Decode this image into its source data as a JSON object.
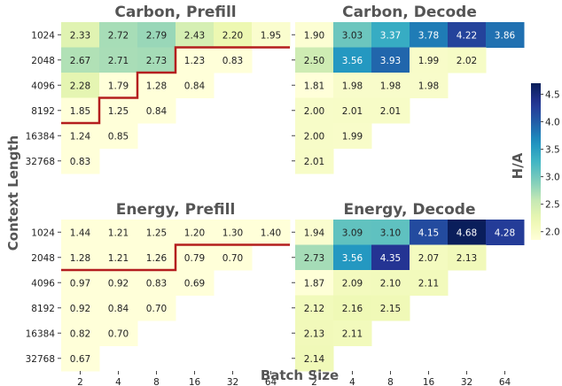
{
  "labels": {
    "ylabel": "Context Length",
    "xlabel": "Batch Size",
    "colorbar_label": "H/A"
  },
  "colors": {
    "colormap": "YlGnBu",
    "boundary_line": "#b41e1e",
    "text_dark": "#222222",
    "text_light": "#ffffff"
  },
  "colorbar": {
    "ticks": [
      "2.0",
      "2.5",
      "3.0",
      "3.5",
      "4.0",
      "4.5"
    ],
    "range": [
      1.85,
      4.7
    ]
  },
  "chart_data": [
    {
      "type": "heatmap",
      "title": "Carbon, Prefill",
      "x": [
        "2",
        "4",
        "8",
        "16",
        "32",
        "64"
      ],
      "y": [
        "1024",
        "2048",
        "4096",
        "8192",
        "16384",
        "32768"
      ],
      "values": [
        [
          "2.33",
          "2.72",
          "2.79",
          "2.43",
          "2.20",
          "1.95"
        ],
        [
          "2.67",
          "2.71",
          "2.73",
          "1.23",
          "0.83",
          null
        ],
        [
          "2.28",
          "1.79",
          "1.28",
          "0.84",
          null,
          null
        ],
        [
          "1.85",
          "1.25",
          "0.84",
          null,
          null,
          null
        ],
        [
          "1.24",
          "0.85",
          null,
          null,
          null,
          null
        ],
        [
          "0.83",
          null,
          null,
          null,
          null,
          null
        ]
      ],
      "boundary_cols_per_row": [
        6,
        3,
        2,
        1,
        0,
        0
      ]
    },
    {
      "type": "heatmap",
      "title": "Carbon, Decode",
      "x": [
        "2",
        "4",
        "8",
        "16",
        "32",
        "64"
      ],
      "y": [
        "1024",
        "2048",
        "4096",
        "8192",
        "16384",
        "32768"
      ],
      "values": [
        [
          "1.90",
          "3.03",
          "3.37",
          "3.78",
          "4.22",
          "3.86"
        ],
        [
          "2.50",
          "3.56",
          "3.93",
          "1.99",
          "2.02",
          null
        ],
        [
          "1.81",
          "1.98",
          "1.98",
          "1.98",
          null,
          null
        ],
        [
          "2.00",
          "2.01",
          "2.01",
          null,
          null,
          null
        ],
        [
          "2.00",
          "1.99",
          null,
          null,
          null,
          null
        ],
        [
          "2.01",
          null,
          null,
          null,
          null,
          null
        ]
      ]
    },
    {
      "type": "heatmap",
      "title": "Energy, Prefill",
      "x": [
        "2",
        "4",
        "8",
        "16",
        "32",
        "64"
      ],
      "y": [
        "1024",
        "2048",
        "4096",
        "8192",
        "16384",
        "32768"
      ],
      "values": [
        [
          "1.44",
          "1.21",
          "1.25",
          "1.20",
          "1.30",
          "1.40"
        ],
        [
          "1.28",
          "1.21",
          "1.26",
          "0.79",
          "0.70",
          null
        ],
        [
          "0.97",
          "0.92",
          "0.83",
          "0.69",
          null,
          null
        ],
        [
          "0.92",
          "0.84",
          "0.70",
          null,
          null,
          null
        ],
        [
          "0.82",
          "0.70",
          null,
          null,
          null,
          null
        ],
        [
          "0.67",
          null,
          null,
          null,
          null,
          null
        ]
      ],
      "boundary_cols_per_row": [
        6,
        3,
        0,
        0,
        0,
        0
      ]
    },
    {
      "type": "heatmap",
      "title": "Energy, Decode",
      "x": [
        "2",
        "4",
        "8",
        "16",
        "32",
        "64"
      ],
      "y": [
        "1024",
        "2048",
        "4096",
        "8192",
        "16384",
        "32768"
      ],
      "values": [
        [
          "1.94",
          "3.09",
          "3.10",
          "4.15",
          "4.68",
          "4.28"
        ],
        [
          "2.73",
          "3.56",
          "4.35",
          "2.07",
          "2.13",
          null
        ],
        [
          "1.87",
          "2.09",
          "2.10",
          "2.11",
          null,
          null
        ],
        [
          "2.12",
          "2.16",
          "2.15",
          null,
          null,
          null
        ],
        [
          "2.13",
          "2.11",
          null,
          null,
          null,
          null
        ],
        [
          "2.14",
          null,
          null,
          null,
          null,
          null
        ]
      ]
    }
  ]
}
